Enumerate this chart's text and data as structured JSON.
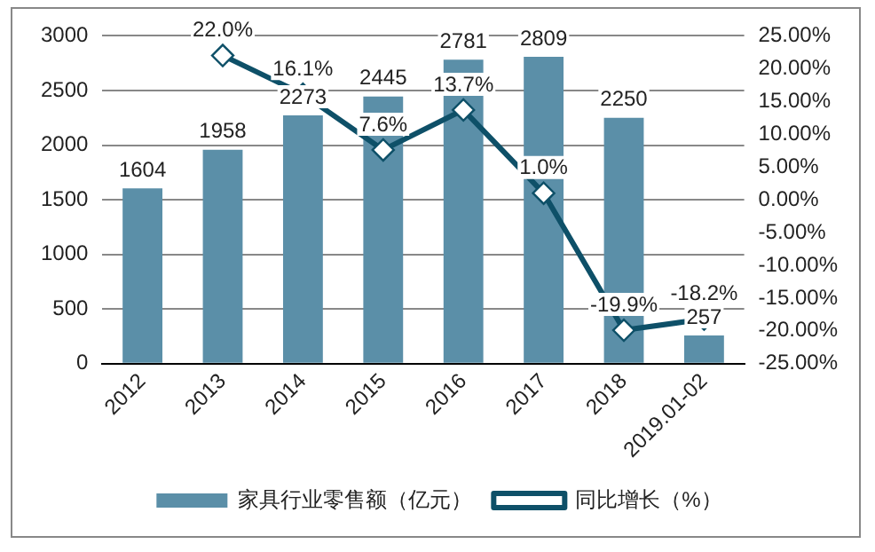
{
  "chart_data": {
    "type": "bar",
    "categories": [
      "2012",
      "2013",
      "2014",
      "2015",
      "2016",
      "2017",
      "2018",
      "2019.01-02"
    ],
    "series": [
      {
        "name": "家具行业零售额（亿元）",
        "color": "#5b8fa8",
        "values": [
          1604,
          1958,
          2273,
          2445,
          2781,
          2809,
          2250,
          257
        ],
        "value_labels": [
          "1604",
          "1958",
          "2273",
          "2445",
          "2781",
          "2809",
          "2250",
          "257"
        ]
      },
      {
        "name": "同比增长（%）",
        "type": "line",
        "axis": "y2",
        "color": "#0e5068",
        "marker": "diamond",
        "values": [
          null,
          22.0,
          16.1,
          7.6,
          13.7,
          1.0,
          -19.9,
          -18.2
        ],
        "value_labels": [
          null,
          "22.0%",
          "16.1%",
          "7.6%",
          "13.7%",
          "1.0%",
          "-19.9%",
          "-18.2%"
        ]
      }
    ],
    "ylim": [
      0,
      3000
    ],
    "yticks": [
      0,
      500,
      1000,
      1500,
      2000,
      2500,
      3000
    ],
    "y2lim": [
      -25,
      25
    ],
    "y2ticks": [
      {
        "value": -25,
        "label": "-25.00%"
      },
      {
        "value": -20,
        "label": "-20.00%"
      },
      {
        "value": -15,
        "label": "-15.00%"
      },
      {
        "value": -10,
        "label": "-10.00%"
      },
      {
        "value": -5,
        "label": "-5.00%"
      },
      {
        "value": 0,
        "label": "0.00%"
      },
      {
        "value": 5,
        "label": "5.00%"
      },
      {
        "value": 10,
        "label": "10.00%"
      },
      {
        "value": 15,
        "label": "15.00%"
      },
      {
        "value": 20,
        "label": "20.00%"
      },
      {
        "value": 25,
        "label": "25.00%"
      }
    ],
    "grid": "y",
    "legend": "bottom"
  }
}
